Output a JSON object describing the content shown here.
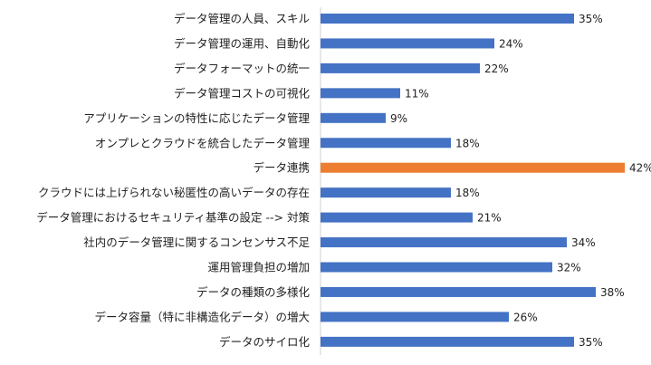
{
  "chart_data": {
    "type": "bar",
    "orientation": "horizontal",
    "categories": [
      "データ管理の人員、スキル",
      "データ管理の運用、自動化",
      "データフォーマットの統一",
      "データ管理コストの可視化",
      "アプリケーションの特性に応じたデータ管理",
      "オンプレとクラウドを統合したデータ管理",
      "データ連携",
      "クラウドには上げられない秘匿性の高いデータの存在",
      "データ管理におけるセキュリティ基準の設定 --> 対策",
      "社内のデータ管理に関するコンセンサス不足",
      "運用管理負担の増加",
      "データの種類の多様化",
      "データ容量（特に非構造化データ）の増大",
      "データのサイロ化"
    ],
    "values": [
      35,
      24,
      22,
      11,
      9,
      18,
      42,
      18,
      21,
      34,
      32,
      38,
      26,
      35
    ],
    "value_labels": [
      "35%",
      "24%",
      "22%",
      "11%",
      "9%",
      "18%",
      "42%",
      "18%",
      "21%",
      "34%",
      "32%",
      "38%",
      "26%",
      "35%"
    ],
    "unit": "%",
    "xlim": [
      0,
      45
    ],
    "grid": false,
    "legend": "none",
    "colors": {
      "default": "#4472C4",
      "highlight": "#ED7D31"
    },
    "highlighted_category": "データ連携"
  }
}
